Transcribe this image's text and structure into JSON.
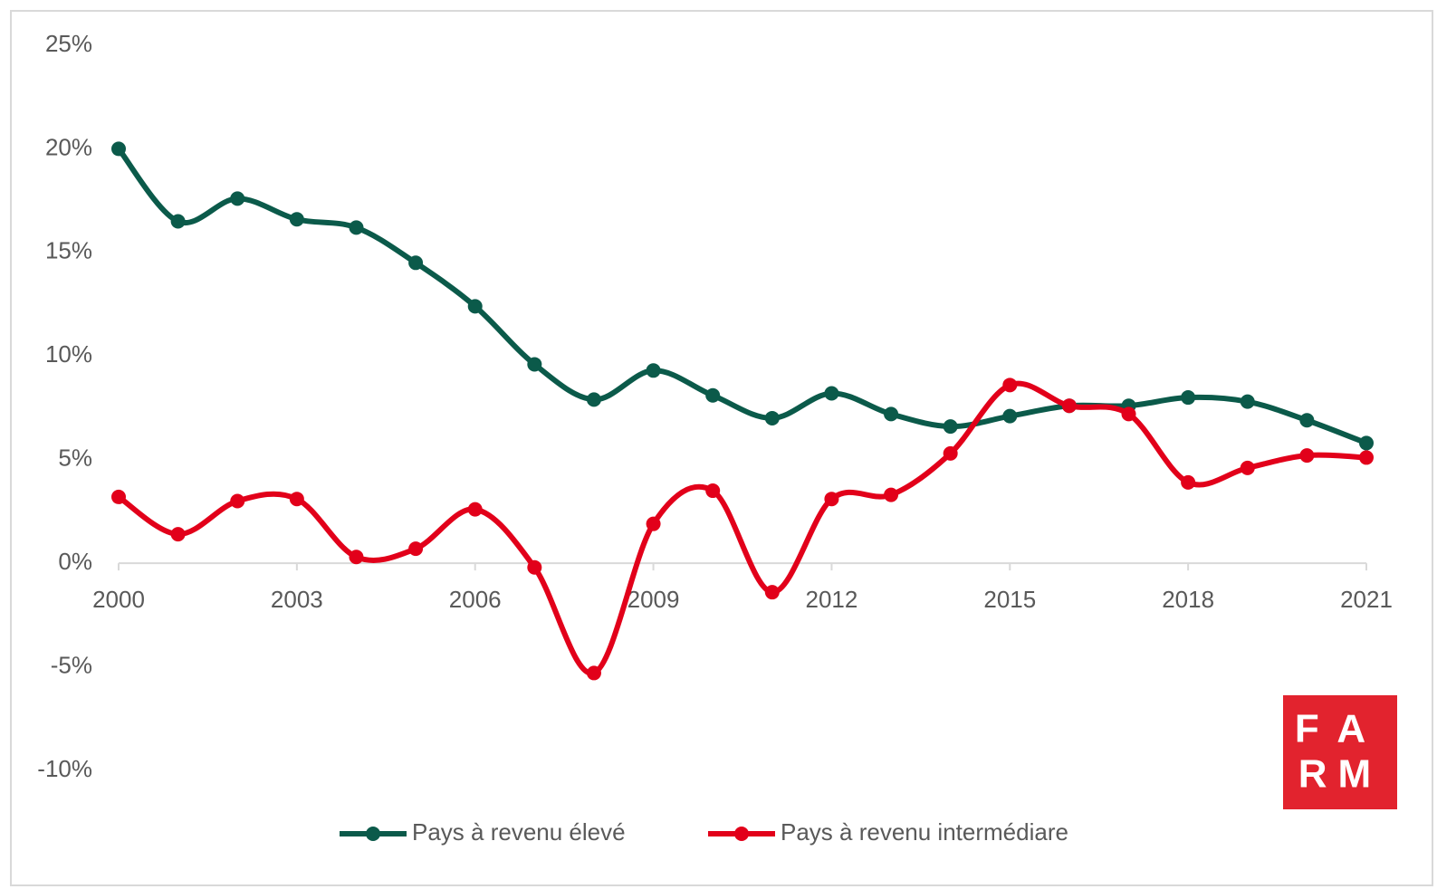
{
  "chart_data": {
    "type": "line",
    "x": [
      2000,
      2001,
      2002,
      2003,
      2004,
      2005,
      2006,
      2007,
      2008,
      2009,
      2010,
      2011,
      2012,
      2013,
      2014,
      2015,
      2016,
      2017,
      2018,
      2019,
      2020,
      2021
    ],
    "series": [
      {
        "name": "Pays à revenu élevé",
        "color": "#0b5a4a",
        "values": [
          20.0,
          16.5,
          17.6,
          16.6,
          16.2,
          14.5,
          12.4,
          9.6,
          7.9,
          9.3,
          8.1,
          7.0,
          8.2,
          7.2,
          6.6,
          7.1,
          7.6,
          7.6,
          8.0,
          7.8,
          6.9,
          5.8
        ]
      },
      {
        "name": "Pays à revenu intermédiare",
        "color": "#e2001a",
        "values": [
          3.2,
          1.4,
          3.0,
          3.1,
          0.3,
          0.7,
          2.6,
          -0.2,
          -5.3,
          1.9,
          3.5,
          -1.4,
          3.1,
          3.3,
          5.3,
          8.6,
          7.6,
          7.2,
          3.9,
          4.6,
          5.2,
          5.1
        ]
      }
    ],
    "xlim": [
      2000,
      2021
    ],
    "xticks": [
      2000,
      2003,
      2006,
      2009,
      2012,
      2015,
      2018,
      2021
    ],
    "ylim": [
      -10,
      25
    ],
    "yticks": [
      {
        "value": -10,
        "label": "-10%"
      },
      {
        "value": -5,
        "label": "-5%"
      },
      {
        "value": 0,
        "label": "0%"
      },
      {
        "value": 5,
        "label": "5%"
      },
      {
        "value": 10,
        "label": "10%"
      },
      {
        "value": 15,
        "label": "15%"
      },
      {
        "value": 20,
        "label": "20%"
      },
      {
        "value": 25,
        "label": "25%"
      }
    ],
    "legend": "bottom",
    "logo": {
      "line1": "FA",
      "line2": "RM",
      "color": "#e2232e"
    }
  }
}
